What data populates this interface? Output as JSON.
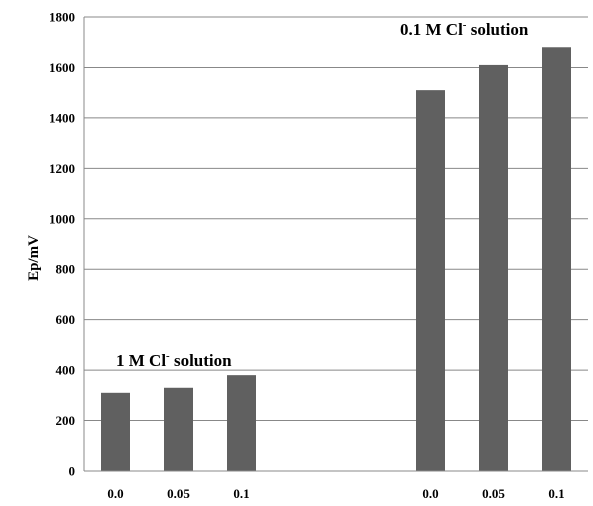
{
  "chart_data": {
    "type": "bar",
    "categories": [
      "0.0",
      "0.05",
      "0.1",
      "0.0",
      "0.05",
      "0.1"
    ],
    "series": [
      {
        "values": [
          310,
          330,
          380,
          1510,
          1610,
          1680
        ]
      }
    ],
    "ylabel": "Ep/mV",
    "xlabel": "",
    "ylim": [
      0,
      1800
    ],
    "yticks": [
      0,
      200,
      400,
      600,
      800,
      1000,
      1200,
      1400,
      1600,
      1800
    ],
    "grid": true,
    "bar_color": "#606060",
    "grid_color": "#888888",
    "annotations": [
      {
        "main": "1 M Cl",
        "sup": "-",
        "rest": " solution",
        "group": "left"
      },
      {
        "main": "0.1 M Cl",
        "sup": "-",
        "rest": " solution",
        "group": "right"
      }
    ]
  }
}
